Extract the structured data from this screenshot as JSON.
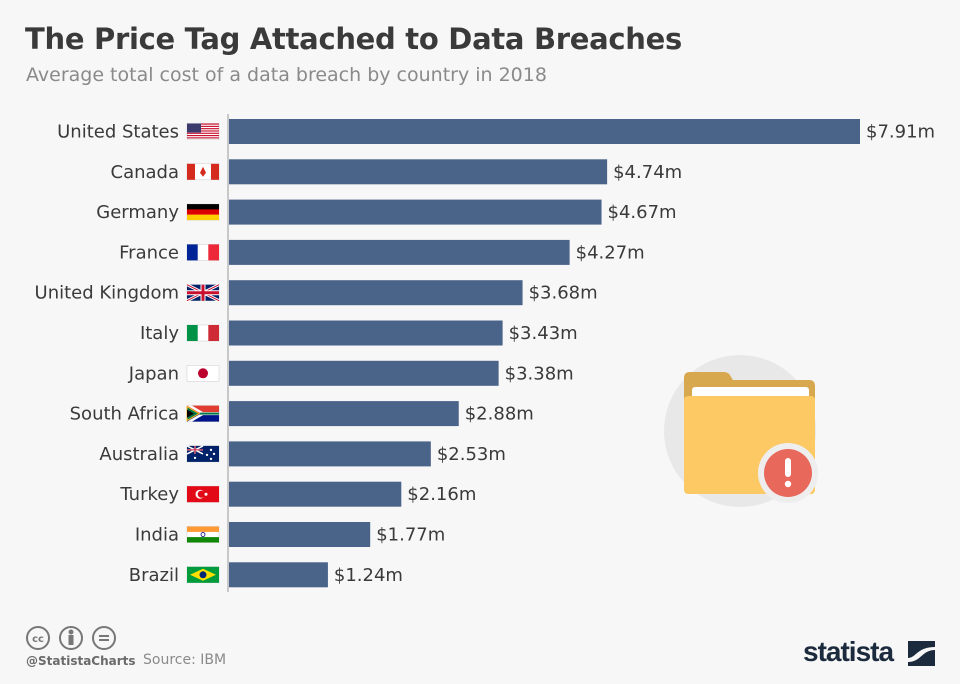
{
  "title": "The Price Tag Attached to Data Breaches",
  "subtitle": "Average total cost of a data breach by country in 2018",
  "footer": {
    "handle": "@StatistaCharts",
    "source": "Source: IBM",
    "brand": "statista",
    "license_icons": [
      "cc-icon",
      "by-icon",
      "nd-icon"
    ]
  },
  "colors": {
    "bar": "#4a6389",
    "text": "#3a3a3a",
    "folder": "#fdc965",
    "folder_tab": "#d8a84e",
    "alert": "#e8685c",
    "circle": "#e8e8e8"
  },
  "illustration": {
    "icon": "folder-alert-icon"
  },
  "chart_data": {
    "type": "bar",
    "orientation": "horizontal",
    "title": "The Price Tag Attached to Data Breaches",
    "subtitle": "Average total cost of a data breach by country in 2018",
    "unit": "million USD",
    "categories": [
      "United States",
      "Canada",
      "Germany",
      "France",
      "United Kingdom",
      "Italy",
      "Japan",
      "South Africa",
      "Australia",
      "Turkey",
      "India",
      "Brazil"
    ],
    "flags": [
      "us",
      "ca",
      "de",
      "fr",
      "gb",
      "it",
      "jp",
      "za",
      "au",
      "tr",
      "in",
      "br"
    ],
    "values": [
      7.91,
      4.74,
      4.67,
      4.27,
      3.68,
      3.43,
      3.38,
      2.88,
      2.53,
      2.16,
      1.77,
      1.24
    ],
    "labels": [
      "$7.91m",
      "$4.74m",
      "$4.67m",
      "$4.27m",
      "$3.68m",
      "$3.43m",
      "$3.38m",
      "$2.88m",
      "$2.53m",
      "$2.16m",
      "$1.77m",
      "$1.24m"
    ],
    "xlim": [
      0,
      7.91
    ],
    "grid": false
  }
}
